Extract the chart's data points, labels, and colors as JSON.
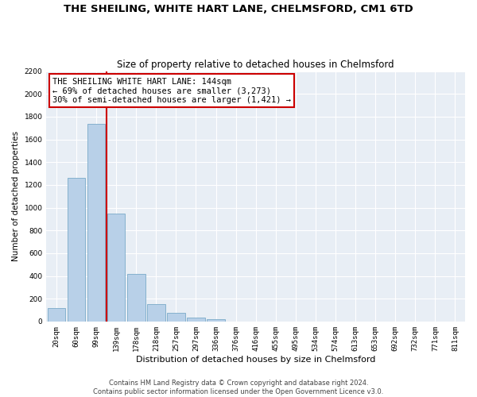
{
  "title": "THE SHEILING, WHITE HART LANE, CHELMSFORD, CM1 6TD",
  "subtitle": "Size of property relative to detached houses in Chelmsford",
  "xlabel": "Distribution of detached houses by size in Chelmsford",
  "ylabel": "Number of detached properties",
  "categories": [
    "20sqm",
    "60sqm",
    "99sqm",
    "139sqm",
    "178sqm",
    "218sqm",
    "257sqm",
    "297sqm",
    "336sqm",
    "376sqm",
    "416sqm",
    "455sqm",
    "495sqm",
    "534sqm",
    "574sqm",
    "613sqm",
    "653sqm",
    "692sqm",
    "732sqm",
    "771sqm",
    "811sqm"
  ],
  "values": [
    120,
    1265,
    1735,
    950,
    415,
    155,
    75,
    35,
    20,
    0,
    0,
    0,
    0,
    0,
    0,
    0,
    0,
    0,
    0,
    0,
    0
  ],
  "bar_color": "#b8d0e8",
  "bar_edge_color": "#7aaac8",
  "vline_color": "#cc0000",
  "vline_pos": 2.5,
  "annotation_text": "THE SHEILING WHITE HART LANE: 144sqm\n← 69% of detached houses are smaller (3,273)\n30% of semi-detached houses are larger (1,421) →",
  "annotation_box_facecolor": "#ffffff",
  "annotation_box_edgecolor": "#cc0000",
  "ylim": [
    0,
    2200
  ],
  "yticks": [
    0,
    200,
    400,
    600,
    800,
    1000,
    1200,
    1400,
    1600,
    1800,
    2000,
    2200
  ],
  "plot_bg_color": "#e8eef5",
  "fig_bg_color": "#ffffff",
  "grid_color": "#ffffff",
  "title_fontsize": 9.5,
  "subtitle_fontsize": 8.5,
  "xlabel_fontsize": 8,
  "ylabel_fontsize": 7.5,
  "tick_fontsize": 6.5,
  "annotation_fontsize": 7.5,
  "footer_fontsize": 6,
  "footer_line1": "Contains HM Land Registry data © Crown copyright and database right 2024.",
  "footer_line2": "Contains public sector information licensed under the Open Government Licence v3.0."
}
